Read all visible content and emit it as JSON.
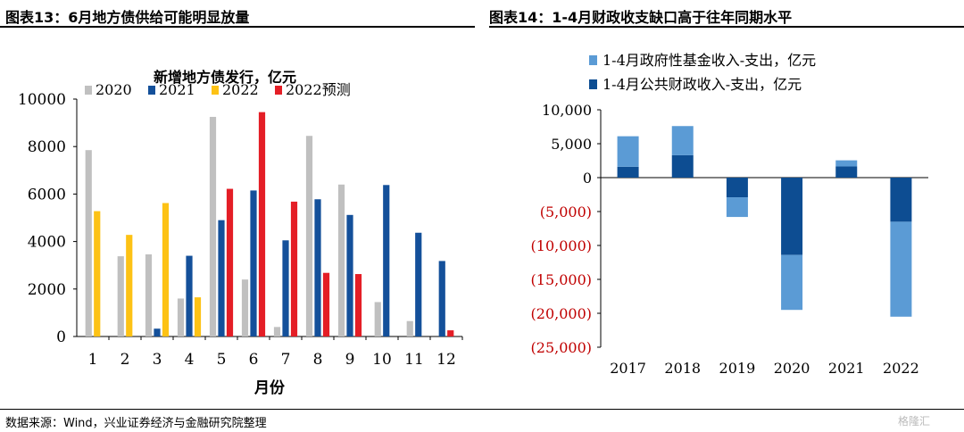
{
  "left": {
    "header": "图表13：6月地方债供给可能明显放量"
  },
  "right": {
    "header": "图表14：1-4月财政收支缺口高于往年同期水平"
  },
  "footer": {
    "source": "数据来源：Wind，兴业证券经济与金融研究院整理",
    "watermark": "格隆汇"
  },
  "colors": {
    "gray": "#c0c0c0",
    "navy": "#14509a",
    "yellow": "#fdc215",
    "red": "#e41e26",
    "light_blue": "#5b9bd5",
    "dark_blue": "#0d4d92",
    "negative_tick": "#c00000"
  },
  "chart_data": [
    {
      "type": "bar",
      "title": "新增地方债发行，亿元",
      "xlabel": "月份",
      "ylabel": "",
      "categories": [
        "1",
        "2",
        "3",
        "4",
        "5",
        "6",
        "7",
        "8",
        "9",
        "10",
        "11",
        "12"
      ],
      "ylim": [
        0,
        10000
      ],
      "yticks": [
        "0",
        "2000",
        "4000",
        "6000",
        "8000",
        "10000"
      ],
      "legend_position": "top",
      "grid": false,
      "series": [
        {
          "name": "2020",
          "color": "#c0c0c0",
          "values": [
            7850,
            3380,
            3460,
            1600,
            9250,
            2400,
            400,
            8450,
            6400,
            1450,
            650,
            null
          ]
        },
        {
          "name": "2021",
          "color": "#14509a",
          "values": [
            null,
            null,
            330,
            3400,
            4900,
            6150,
            4050,
            5780,
            5120,
            6380,
            4370,
            3180
          ]
        },
        {
          "name": "2022",
          "color": "#fdc215",
          "values": [
            5280,
            4280,
            5620,
            1650,
            null,
            null,
            null,
            null,
            null,
            null,
            null,
            null
          ]
        },
        {
          "name": "2022预测",
          "color": "#e41e26",
          "values": [
            null,
            null,
            null,
            null,
            6220,
            9450,
            5680,
            2680,
            2630,
            null,
            null,
            260
          ]
        }
      ]
    },
    {
      "type": "bar",
      "stacked": true,
      "title": "",
      "xlabel": "",
      "ylabel": "",
      "categories": [
        "2017",
        "2018",
        "2019",
        "2020",
        "2021",
        "2022"
      ],
      "ylim": [
        -25000,
        10000
      ],
      "yticks": [
        "(25,000)",
        "(20,000)",
        "(15,000)",
        "(10,000)",
        "(5,000)",
        "0",
        "5,000",
        "10,000"
      ],
      "legend_position": "top-left",
      "grid": false,
      "series": [
        {
          "name": "1-4月公共财政收入-支出，亿元",
          "color": "#0d4d92",
          "values": [
            1600,
            3300,
            -2900,
            -11400,
            1650,
            -6500
          ]
        },
        {
          "name": "1-4月政府性基金收入-支出，亿元",
          "color": "#5b9bd5",
          "values": [
            4500,
            4300,
            -2900,
            -8100,
            900,
            -14000
          ]
        }
      ]
    }
  ]
}
